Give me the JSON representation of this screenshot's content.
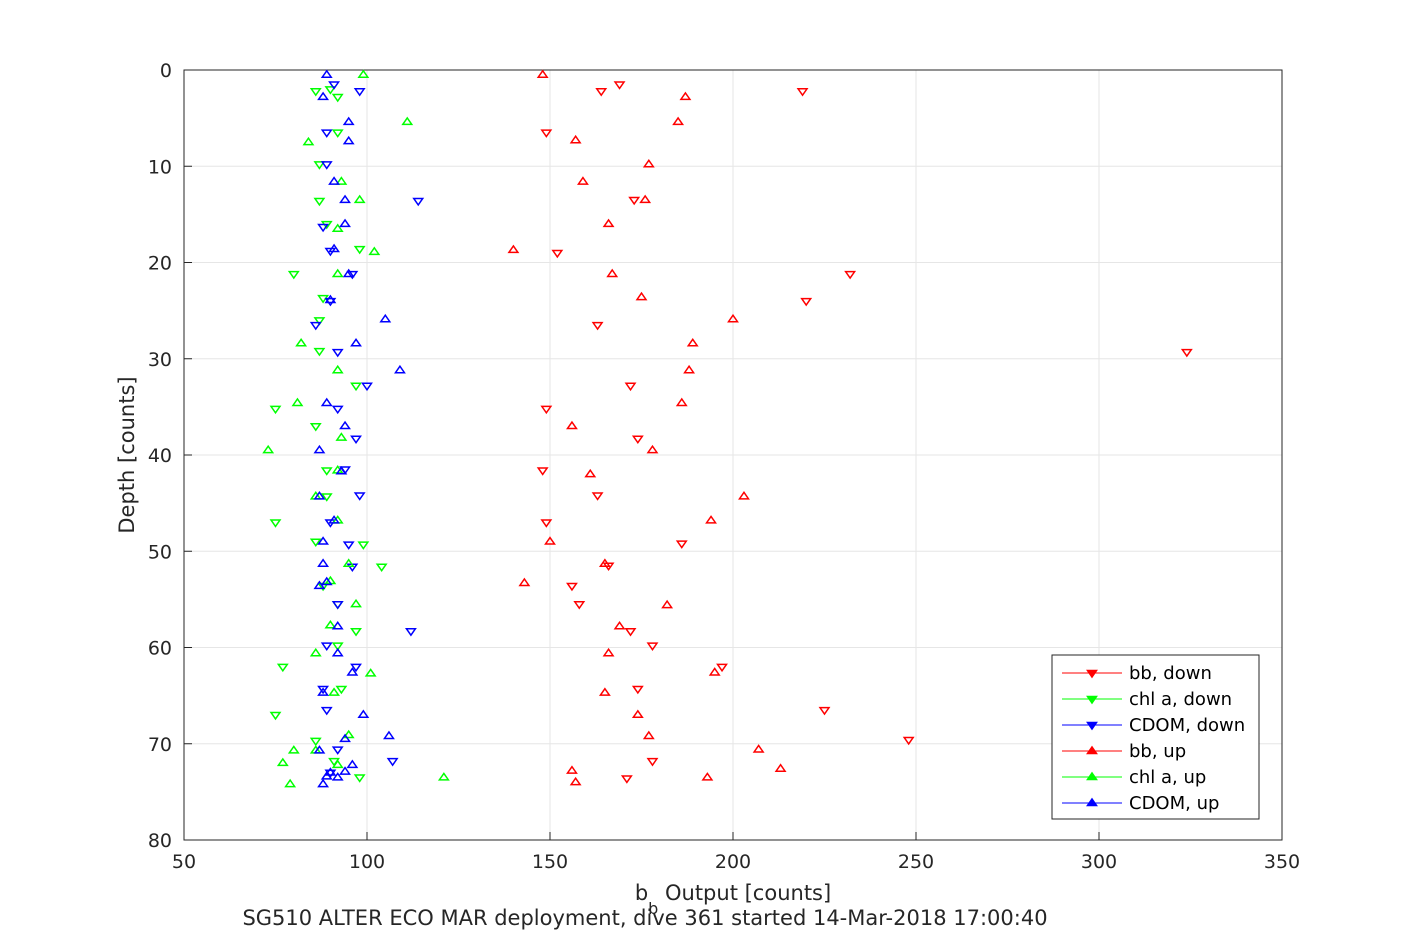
{
  "chart_data": {
    "type": "scatter",
    "title": "",
    "xlabel_main": "b",
    "xlabel_sub": "b",
    "xlabel_rest": " Output [counts]",
    "ylabel": "Depth [counts]",
    "caption": "SG510 ALTER ECO MAR deployment, dive 361 started 14-Mar-2018 17:00:40",
    "xlim": [
      50,
      350
    ],
    "ylim": [
      0,
      80
    ],
    "y_reversed": true,
    "xticks": [
      "50",
      "100",
      "150",
      "200",
      "250",
      "300",
      "350"
    ],
    "yticks": [
      "0",
      "10",
      "20",
      "30",
      "40",
      "50",
      "60",
      "70",
      "80"
    ],
    "grid": true,
    "legend_position": "bottom-right",
    "series": [
      {
        "name": "bb, down",
        "color": "#ff0000",
        "marker": "triangle-down",
        "points": [
          [
            169,
            1.5
          ],
          [
            164,
            2.2
          ],
          [
            219,
            2.2
          ],
          [
            149,
            6.5
          ],
          [
            173,
            13.5
          ],
          [
            152,
            19
          ],
          [
            232,
            21.2
          ],
          [
            220,
            24
          ],
          [
            163,
            26.5
          ],
          [
            324,
            29.3
          ],
          [
            172,
            32.8
          ],
          [
            149,
            35.2
          ],
          [
            174,
            38.3
          ],
          [
            148,
            41.6
          ],
          [
            163,
            44.2
          ],
          [
            149,
            47
          ],
          [
            186,
            49.2
          ],
          [
            166,
            51.5
          ],
          [
            156,
            53.6
          ],
          [
            158,
            55.5
          ],
          [
            172,
            58.3
          ],
          [
            178,
            59.8
          ],
          [
            197,
            62
          ],
          [
            174,
            64.3
          ],
          [
            225,
            66.5
          ],
          [
            248,
            69.6
          ],
          [
            178,
            71.8
          ],
          [
            171,
            73.6
          ]
        ]
      },
      {
        "name": "chl a, down",
        "color": "#00ff00",
        "marker": "triangle-down",
        "points": [
          [
            86,
            2.2
          ],
          [
            90,
            2
          ],
          [
            92,
            2.8
          ],
          [
            92,
            6.5
          ],
          [
            87,
            9.8
          ],
          [
            87,
            13.6
          ],
          [
            89,
            16
          ],
          [
            98,
            18.6
          ],
          [
            80,
            21.2
          ],
          [
            88,
            23.7
          ],
          [
            87,
            26
          ],
          [
            87,
            29.2
          ],
          [
            97,
            32.8
          ],
          [
            75,
            35.2
          ],
          [
            86,
            37
          ],
          [
            89,
            41.6
          ],
          [
            89,
            44.3
          ],
          [
            75,
            47
          ],
          [
            86,
            49
          ],
          [
            99,
            49.3
          ],
          [
            104,
            51.6
          ],
          [
            88,
            53.6
          ],
          [
            92,
            55.5
          ],
          [
            97,
            58.3
          ],
          [
            92,
            59.8
          ],
          [
            77,
            62
          ],
          [
            93,
            64.3
          ],
          [
            75,
            67
          ],
          [
            86,
            69.7
          ],
          [
            91,
            71.8
          ],
          [
            98,
            73.5
          ]
        ]
      },
      {
        "name": "CDOM, down",
        "color": "#0000ff",
        "marker": "triangle-down",
        "points": [
          [
            91,
            1.5
          ],
          [
            98,
            2.2
          ],
          [
            89,
            6.5
          ],
          [
            89,
            9.8
          ],
          [
            114,
            13.6
          ],
          [
            88,
            16.3
          ],
          [
            90,
            18.8
          ],
          [
            96,
            21.2
          ],
          [
            90,
            24
          ],
          [
            86,
            26.5
          ],
          [
            92,
            29.3
          ],
          [
            100,
            32.8
          ],
          [
            92,
            35.2
          ],
          [
            97,
            38.3
          ],
          [
            94,
            41.5
          ],
          [
            98,
            44.2
          ],
          [
            90,
            47
          ],
          [
            95,
            49.3
          ],
          [
            96,
            51.6
          ],
          [
            92,
            55.5
          ],
          [
            112,
            58.3
          ],
          [
            89,
            59.8
          ],
          [
            97,
            62
          ],
          [
            88,
            64.3
          ],
          [
            89,
            66.5
          ],
          [
            92,
            70.6
          ],
          [
            107,
            71.8
          ],
          [
            90,
            73
          ]
        ]
      },
      {
        "name": "bb, up",
        "color": "#ff0000",
        "marker": "triangle-up",
        "points": [
          [
            148,
            0.5
          ],
          [
            187,
            2.8
          ],
          [
            185,
            5.4
          ],
          [
            157,
            7.3
          ],
          [
            177,
            9.8
          ],
          [
            159,
            11.6
          ],
          [
            176,
            13.5
          ],
          [
            166,
            16
          ],
          [
            140,
            18.7
          ],
          [
            167,
            21.2
          ],
          [
            175,
            23.6
          ],
          [
            200,
            25.9
          ],
          [
            189,
            28.4
          ],
          [
            188,
            31.2
          ],
          [
            186,
            34.6
          ],
          [
            156,
            37
          ],
          [
            178,
            39.5
          ],
          [
            161,
            42
          ],
          [
            203,
            44.3
          ],
          [
            194,
            46.8
          ],
          [
            150,
            49
          ],
          [
            165,
            51.3
          ],
          [
            143,
            53.3
          ],
          [
            182,
            55.6
          ],
          [
            169,
            57.8
          ],
          [
            166,
            60.6
          ],
          [
            195,
            62.6
          ],
          [
            165,
            64.7
          ],
          [
            174,
            67
          ],
          [
            177,
            69.2
          ],
          [
            207,
            70.6
          ],
          [
            213,
            72.6
          ],
          [
            156,
            72.8
          ],
          [
            157,
            74
          ],
          [
            193,
            73.5
          ]
        ]
      },
      {
        "name": "chl a, up",
        "color": "#00ff00",
        "marker": "triangle-up",
        "points": [
          [
            99,
            0.5
          ],
          [
            111,
            5.4
          ],
          [
            84,
            7.5
          ],
          [
            93,
            11.6
          ],
          [
            98,
            13.5
          ],
          [
            92,
            16.5
          ],
          [
            102,
            18.9
          ],
          [
            92,
            21.2
          ],
          [
            82,
            28.4
          ],
          [
            92,
            31.2
          ],
          [
            81,
            34.6
          ],
          [
            93,
            38.2
          ],
          [
            73,
            39.5
          ],
          [
            92,
            41.6
          ],
          [
            86,
            44.3
          ],
          [
            92,
            46.8
          ],
          [
            95,
            51.3
          ],
          [
            90,
            53.1
          ],
          [
            97,
            55.5
          ],
          [
            90,
            57.7
          ],
          [
            86,
            60.6
          ],
          [
            101,
            62.7
          ],
          [
            91,
            64.7
          ],
          [
            95,
            69.1
          ],
          [
            80,
            70.7
          ],
          [
            77,
            72
          ],
          [
            86,
            70.7
          ],
          [
            121,
            73.5
          ],
          [
            79,
            74.2
          ],
          [
            92,
            72.2
          ]
        ]
      },
      {
        "name": "CDOM, up",
        "color": "#0000ff",
        "marker": "triangle-up",
        "points": [
          [
            89,
            0.5
          ],
          [
            88,
            2.8
          ],
          [
            95,
            5.4
          ],
          [
            95,
            7.4
          ],
          [
            91,
            11.6
          ],
          [
            94,
            13.5
          ],
          [
            94,
            16
          ],
          [
            91,
            18.6
          ],
          [
            95,
            21.2
          ],
          [
            90,
            23.9
          ],
          [
            105,
            25.9
          ],
          [
            97,
            28.4
          ],
          [
            109,
            31.2
          ],
          [
            89,
            34.6
          ],
          [
            94,
            37
          ],
          [
            87,
            39.5
          ],
          [
            93,
            41.7
          ],
          [
            87,
            44.3
          ],
          [
            91,
            46.8
          ],
          [
            88,
            49
          ],
          [
            88,
            51.3
          ],
          [
            87,
            53.6
          ],
          [
            89,
            53.2
          ],
          [
            92,
            57.8
          ],
          [
            92,
            60.6
          ],
          [
            96,
            62.6
          ],
          [
            88,
            64.7
          ],
          [
            99,
            67
          ],
          [
            106,
            69.2
          ],
          [
            94,
            69.5
          ],
          [
            87,
            70.7
          ],
          [
            90,
            73
          ],
          [
            96,
            72.2
          ],
          [
            94,
            72.9
          ],
          [
            92,
            73.5
          ],
          [
            89,
            73.4
          ],
          [
            88,
            74.2
          ]
        ]
      }
    ]
  }
}
